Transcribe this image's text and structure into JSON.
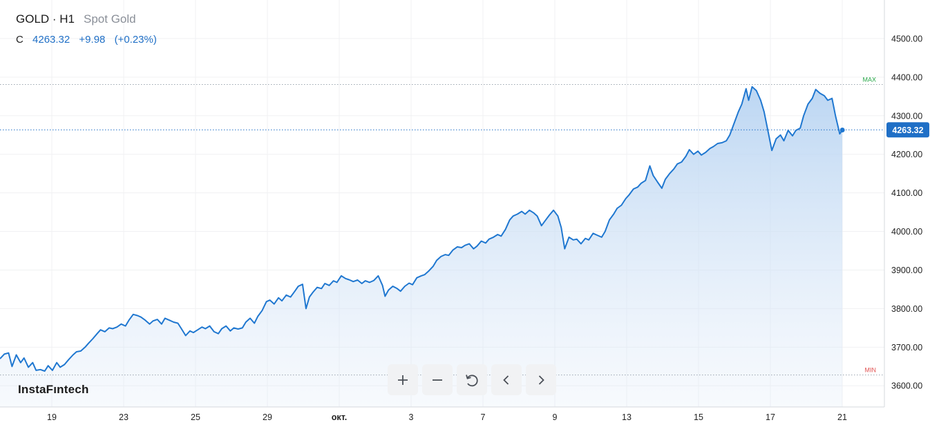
{
  "header": {
    "symbol": "GOLD · H1",
    "name": "Spot Gold",
    "close_label": "C",
    "close_value": "4263.32",
    "change": "+9.98",
    "change_pct": "(+0.23%)"
  },
  "brand": "InstaFıntech",
  "toolbar": [
    {
      "name": "zoom-in",
      "icon": "plus-icon"
    },
    {
      "name": "zoom-out",
      "icon": "minus-icon"
    },
    {
      "name": "reset",
      "icon": "reset-icon"
    },
    {
      "name": "scroll-left",
      "icon": "chevron-left-icon"
    },
    {
      "name": "scroll-right",
      "icon": "chevron-right-icon"
    }
  ],
  "colors": {
    "line": "#1f77d0",
    "area_top": "#b8d4f2",
    "current_tag": "#1f6fc6",
    "max": "#2aa84a",
    "min": "#e05050"
  },
  "chart_data": {
    "type": "area",
    "timeframe": "H1",
    "x_ticks": [
      "19",
      "23",
      "25",
      "29",
      "окт.",
      "3",
      "7",
      "9",
      "13",
      "15",
      "17",
      "21"
    ],
    "y_ticks": [
      "3600.00",
      "3700.00",
      "3800.00",
      "3900.00",
      "4000.00",
      "4100.00",
      "4200.00",
      "4300.00",
      "4400.00",
      "4500.00"
    ],
    "ylim": [
      3545,
      4600
    ],
    "x_range": [
      0,
      100
    ],
    "max_label": "MAX",
    "max_value": 4381,
    "min_label": "MIN",
    "min_value": 3628,
    "current_value": 4263.32,
    "current_label": "4263.32",
    "points": [
      [
        0.0,
        3670
      ],
      [
        0.5,
        3682
      ],
      [
        1.0,
        3685
      ],
      [
        1.4,
        3650
      ],
      [
        1.9,
        3680
      ],
      [
        2.4,
        3660
      ],
      [
        2.8,
        3672
      ],
      [
        3.3,
        3648
      ],
      [
        3.8,
        3660
      ],
      [
        4.2,
        3640
      ],
      [
        4.7,
        3642
      ],
      [
        5.2,
        3638
      ],
      [
        5.6,
        3652
      ],
      [
        6.1,
        3640
      ],
      [
        6.6,
        3660
      ],
      [
        7.0,
        3648
      ],
      [
        7.5,
        3655
      ],
      [
        8.0,
        3668
      ],
      [
        8.5,
        3680
      ],
      [
        8.9,
        3688
      ],
      [
        9.4,
        3690
      ],
      [
        9.9,
        3700
      ],
      [
        10.3,
        3710
      ],
      [
        10.8,
        3722
      ],
      [
        11.3,
        3735
      ],
      [
        11.7,
        3745
      ],
      [
        12.2,
        3740
      ],
      [
        12.7,
        3750
      ],
      [
        13.1,
        3748
      ],
      [
        13.6,
        3752
      ],
      [
        14.1,
        3760
      ],
      [
        14.6,
        3755
      ],
      [
        15.0,
        3770
      ],
      [
        15.5,
        3785
      ],
      [
        16.0,
        3782
      ],
      [
        16.4,
        3778
      ],
      [
        16.9,
        3770
      ],
      [
        17.4,
        3760
      ],
      [
        17.8,
        3768
      ],
      [
        18.3,
        3772
      ],
      [
        18.8,
        3760
      ],
      [
        19.2,
        3775
      ],
      [
        19.7,
        3770
      ],
      [
        20.2,
        3765
      ],
      [
        20.7,
        3762
      ],
      [
        21.1,
        3748
      ],
      [
        21.6,
        3730
      ],
      [
        22.1,
        3742
      ],
      [
        22.5,
        3738
      ],
      [
        23.0,
        3745
      ],
      [
        23.5,
        3752
      ],
      [
        23.9,
        3748
      ],
      [
        24.4,
        3755
      ],
      [
        24.9,
        3740
      ],
      [
        25.4,
        3735
      ],
      [
        25.8,
        3748
      ],
      [
        26.3,
        3755
      ],
      [
        26.8,
        3742
      ],
      [
        27.2,
        3750
      ],
      [
        27.7,
        3747
      ],
      [
        28.2,
        3750
      ],
      [
        28.6,
        3765
      ],
      [
        29.1,
        3775
      ],
      [
        29.6,
        3762
      ],
      [
        30.0,
        3780
      ],
      [
        30.5,
        3795
      ],
      [
        31.0,
        3818
      ],
      [
        31.4,
        3822
      ],
      [
        31.9,
        3812
      ],
      [
        32.4,
        3828
      ],
      [
        32.8,
        3820
      ],
      [
        33.3,
        3835
      ],
      [
        33.8,
        3830
      ],
      [
        34.3,
        3845
      ],
      [
        34.7,
        3858
      ],
      [
        35.2,
        3863
      ],
      [
        35.6,
        3800
      ],
      [
        36.0,
        3830
      ],
      [
        36.4,
        3842
      ],
      [
        36.9,
        3855
      ],
      [
        37.4,
        3852
      ],
      [
        37.8,
        3865
      ],
      [
        38.3,
        3860
      ],
      [
        38.8,
        3872
      ],
      [
        39.2,
        3868
      ],
      [
        39.7,
        3885
      ],
      [
        40.2,
        3878
      ],
      [
        40.6,
        3875
      ],
      [
        41.1,
        3870
      ],
      [
        41.6,
        3874
      ],
      [
        42.1,
        3865
      ],
      [
        42.5,
        3872
      ],
      [
        43.0,
        3868
      ],
      [
        43.5,
        3873
      ],
      [
        44.0,
        3885
      ],
      [
        44.5,
        3860
      ],
      [
        44.8,
        3832
      ],
      [
        45.2,
        3848
      ],
      [
        45.7,
        3858
      ],
      [
        46.2,
        3852
      ],
      [
        46.6,
        3845
      ],
      [
        47.1,
        3858
      ],
      [
        47.6,
        3866
      ],
      [
        48.0,
        3862
      ],
      [
        48.5,
        3880
      ],
      [
        49.0,
        3885
      ],
      [
        49.4,
        3888
      ],
      [
        49.9,
        3898
      ],
      [
        50.4,
        3910
      ],
      [
        50.8,
        3925
      ],
      [
        51.3,
        3935
      ],
      [
        51.8,
        3940
      ],
      [
        52.2,
        3938
      ],
      [
        52.7,
        3952
      ],
      [
        53.2,
        3960
      ],
      [
        53.7,
        3958
      ],
      [
        54.1,
        3964
      ],
      [
        54.6,
        3968
      ],
      [
        55.1,
        3955
      ],
      [
        55.5,
        3962
      ],
      [
        56.0,
        3975
      ],
      [
        56.5,
        3970
      ],
      [
        56.9,
        3980
      ],
      [
        57.4,
        3985
      ],
      [
        57.9,
        3992
      ],
      [
        58.3,
        3988
      ],
      [
        58.8,
        4005
      ],
      [
        59.3,
        4030
      ],
      [
        59.7,
        4040
      ],
      [
        60.2,
        4045
      ],
      [
        60.7,
        4052
      ],
      [
        61.1,
        4045
      ],
      [
        61.6,
        4055
      ],
      [
        62.1,
        4048
      ],
      [
        62.5,
        4040
      ],
      [
        63.0,
        4015
      ],
      [
        63.5,
        4030
      ],
      [
        63.9,
        4042
      ],
      [
        64.4,
        4055
      ],
      [
        64.9,
        4040
      ],
      [
        65.3,
        4010
      ],
      [
        65.7,
        3955
      ],
      [
        66.2,
        3985
      ],
      [
        66.7,
        3978
      ],
      [
        67.1,
        3980
      ],
      [
        67.6,
        3968
      ],
      [
        68.1,
        3982
      ],
      [
        68.5,
        3978
      ],
      [
        69.0,
        3995
      ],
      [
        69.5,
        3990
      ],
      [
        70.0,
        3985
      ],
      [
        70.4,
        4000
      ],
      [
        70.9,
        4030
      ],
      [
        71.4,
        4045
      ],
      [
        71.8,
        4060
      ],
      [
        72.3,
        4068
      ],
      [
        72.8,
        4085
      ],
      [
        73.2,
        4095
      ],
      [
        73.7,
        4110
      ],
      [
        74.2,
        4115
      ],
      [
        74.6,
        4125
      ],
      [
        75.1,
        4132
      ],
      [
        75.6,
        4170
      ],
      [
        76.0,
        4145
      ],
      [
        76.5,
        4128
      ],
      [
        77.0,
        4112
      ],
      [
        77.4,
        4135
      ],
      [
        77.9,
        4150
      ],
      [
        78.4,
        4162
      ],
      [
        78.8,
        4175
      ],
      [
        79.3,
        4180
      ],
      [
        79.8,
        4195
      ],
      [
        80.2,
        4212
      ],
      [
        80.7,
        4200
      ],
      [
        81.2,
        4208
      ],
      [
        81.6,
        4198
      ],
      [
        82.1,
        4205
      ],
      [
        82.6,
        4215
      ],
      [
        83.0,
        4220
      ],
      [
        83.5,
        4228
      ],
      [
        84.0,
        4230
      ],
      [
        84.5,
        4235
      ],
      [
        84.9,
        4250
      ],
      [
        85.4,
        4280
      ],
      [
        85.9,
        4310
      ],
      [
        86.3,
        4330
      ],
      [
        86.8,
        4370
      ],
      [
        87.1,
        4340
      ],
      [
        87.5,
        4375
      ],
      [
        88.0,
        4365
      ],
      [
        88.5,
        4340
      ],
      [
        88.9,
        4310
      ],
      [
        89.4,
        4255
      ],
      [
        89.8,
        4210
      ],
      [
        90.3,
        4240
      ],
      [
        90.8,
        4250
      ],
      [
        91.2,
        4235
      ],
      [
        91.7,
        4262
      ],
      [
        92.2,
        4248
      ],
      [
        92.6,
        4262
      ],
      [
        93.1,
        4268
      ],
      [
        93.5,
        4300
      ],
      [
        94.0,
        4330
      ],
      [
        94.5,
        4345
      ],
      [
        94.9,
        4368
      ],
      [
        95.4,
        4358
      ],
      [
        95.9,
        4352
      ],
      [
        96.3,
        4340
      ],
      [
        96.8,
        4345
      ],
      [
        97.2,
        4300
      ],
      [
        97.7,
        4253
      ],
      [
        98.0,
        4263
      ]
    ]
  }
}
